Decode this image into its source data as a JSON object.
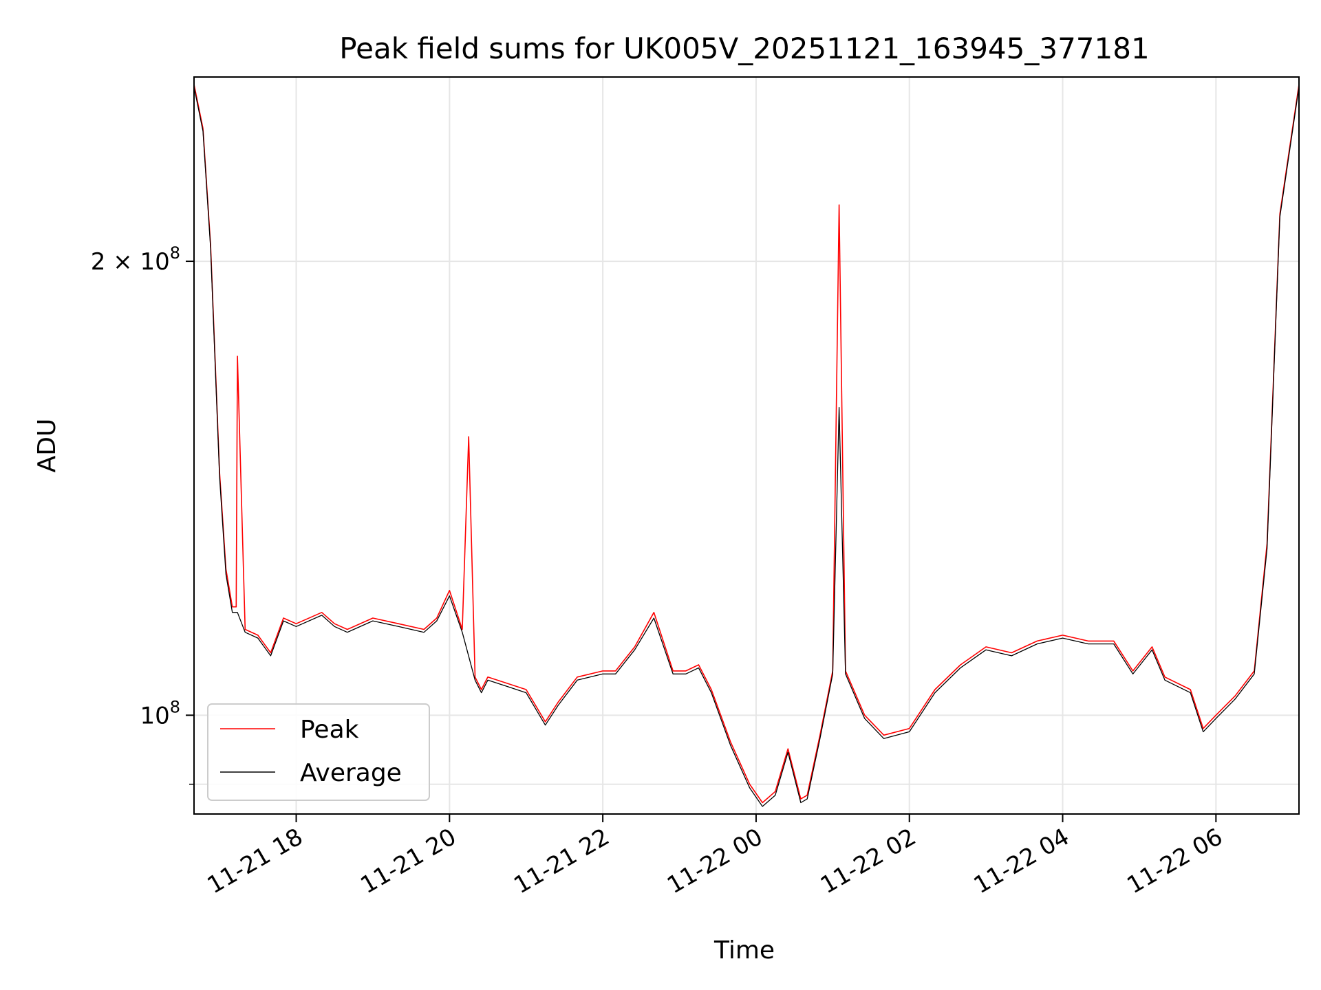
{
  "chart_data": {
    "type": "line",
    "title": "Peak field sums for UK005V_20251121_163945_377181",
    "xlabel": "Time",
    "ylabel": "ADU",
    "y_scale": "log",
    "grid": true,
    "legend_position": "lower-left",
    "xlim": [
      "2025-11-21 16:40",
      "2025-11-22 07:05"
    ],
    "ylim": [
      86000000,
      265000000
    ],
    "x_ticks": [
      {
        "value": "2025-11-21 18:00",
        "label": "11-21 18"
      },
      {
        "value": "2025-11-21 20:00",
        "label": "11-21 20"
      },
      {
        "value": "2025-11-21 22:00",
        "label": "11-21 22"
      },
      {
        "value": "2025-11-22 00:00",
        "label": "11-22 00"
      },
      {
        "value": "2025-11-22 02:00",
        "label": "11-22 02"
      },
      {
        "value": "2025-11-22 04:00",
        "label": "11-22 04"
      },
      {
        "value": "2025-11-22 06:00",
        "label": "11-22 06"
      }
    ],
    "y_ticks_major": [
      {
        "value": 100000000,
        "label": "10",
        "exp": "8"
      },
      {
        "value": 200000000,
        "label": "2 × 10",
        "exp": "8"
      }
    ],
    "y_ticks_minor": [
      90000000
    ],
    "series": [
      {
        "name": "Peak",
        "color": "#ff0000",
        "x": [
          "2025-11-21 16:40",
          "2025-11-21 16:47",
          "2025-11-21 16:53",
          "2025-11-21 17:00",
          "2025-11-21 17:05",
          "2025-11-21 17:10",
          "2025-11-21 17:13",
          "2025-11-21 17:14",
          "2025-11-21 17:20",
          "2025-11-21 17:30",
          "2025-11-21 17:40",
          "2025-11-21 17:50",
          "2025-11-21 18:00",
          "2025-11-21 18:20",
          "2025-11-21 18:30",
          "2025-11-21 18:40",
          "2025-11-21 19:00",
          "2025-11-21 19:20",
          "2025-11-21 19:40",
          "2025-11-21 19:50",
          "2025-11-21 20:00",
          "2025-11-21 20:10",
          "2025-11-21 20:15",
          "2025-11-21 20:20",
          "2025-11-21 20:25",
          "2025-11-21 20:30",
          "2025-11-21 20:45",
          "2025-11-21 21:00",
          "2025-11-21 21:15",
          "2025-11-21 21:25",
          "2025-11-21 21:40",
          "2025-11-21 22:00",
          "2025-11-21 22:10",
          "2025-11-21 22:25",
          "2025-11-21 22:40",
          "2025-11-21 22:55",
          "2025-11-21 23:05",
          "2025-11-21 23:15",
          "2025-11-21 23:25",
          "2025-11-21 23:40",
          "2025-11-21 23:55",
          "2025-11-22 00:05",
          "2025-11-22 00:15",
          "2025-11-22 00:25",
          "2025-11-22 00:35",
          "2025-11-22 00:40",
          "2025-11-22 00:50",
          "2025-11-22 01:00",
          "2025-11-22 01:05",
          "2025-11-22 01:10",
          "2025-11-22 01:25",
          "2025-11-22 01:40",
          "2025-11-22 02:00",
          "2025-11-22 02:20",
          "2025-11-22 02:40",
          "2025-11-22 03:00",
          "2025-11-22 03:20",
          "2025-11-22 03:40",
          "2025-11-22 04:00",
          "2025-11-22 04:20",
          "2025-11-22 04:40",
          "2025-11-22 04:55",
          "2025-11-22 05:10",
          "2025-11-22 05:20",
          "2025-11-22 05:40",
          "2025-11-22 05:50",
          "2025-11-22 06:00",
          "2025-11-22 06:15",
          "2025-11-22 06:30",
          "2025-11-22 06:40",
          "2025-11-22 06:50",
          "2025-11-22 07:05"
        ],
        "values": [
          262000000,
          245000000,
          205000000,
          145000000,
          125000000,
          118000000,
          118000000,
          173000000,
          114000000,
          113000000,
          110000000,
          116000000,
          115000000,
          117000000,
          115000000,
          114000000,
          116000000,
          115000000,
          114000000,
          116000000,
          121000000,
          114000000,
          153000000,
          106000000,
          104000000,
          106000000,
          105000000,
          104000000,
          99000000,
          102000000,
          106000000,
          107000000,
          107000000,
          111000000,
          117000000,
          107000000,
          107000000,
          108000000,
          104000000,
          96000000,
          90000000,
          87500000,
          89000000,
          95000000,
          88000000,
          88500000,
          97000000,
          107000000,
          218000000,
          107000000,
          100000000,
          97000000,
          98000000,
          104000000,
          108000000,
          111000000,
          110000000,
          112000000,
          113000000,
          112000000,
          112000000,
          107000000,
          111000000,
          106000000,
          104000000,
          98000000,
          100000000,
          103000000,
          107000000,
          130000000,
          215000000,
          262000000
        ]
      },
      {
        "name": "Average",
        "color": "#000000",
        "x": [
          "2025-11-21 16:40",
          "2025-11-21 16:47",
          "2025-11-21 16:53",
          "2025-11-21 17:00",
          "2025-11-21 17:05",
          "2025-11-21 17:10",
          "2025-11-21 17:14",
          "2025-11-21 17:20",
          "2025-11-21 17:30",
          "2025-11-21 17:40",
          "2025-11-21 17:50",
          "2025-11-21 18:00",
          "2025-11-21 18:20",
          "2025-11-21 18:30",
          "2025-11-21 18:40",
          "2025-11-21 19:00",
          "2025-11-21 19:20",
          "2025-11-21 19:40",
          "2025-11-21 19:50",
          "2025-11-21 20:00",
          "2025-11-21 20:10",
          "2025-11-21 20:20",
          "2025-11-21 20:25",
          "2025-11-21 20:30",
          "2025-11-21 20:45",
          "2025-11-21 21:00",
          "2025-11-21 21:15",
          "2025-11-21 21:25",
          "2025-11-21 21:40",
          "2025-11-21 22:00",
          "2025-11-21 22:10",
          "2025-11-21 22:25",
          "2025-11-21 22:40",
          "2025-11-21 22:55",
          "2025-11-21 23:05",
          "2025-11-21 23:15",
          "2025-11-21 23:25",
          "2025-11-21 23:40",
          "2025-11-21 23:55",
          "2025-11-22 00:05",
          "2025-11-22 00:15",
          "2025-11-22 00:25",
          "2025-11-22 00:35",
          "2025-11-22 00:40",
          "2025-11-22 00:50",
          "2025-11-22 01:00",
          "2025-11-22 01:05",
          "2025-11-22 01:10",
          "2025-11-22 01:25",
          "2025-11-22 01:40",
          "2025-11-22 02:00",
          "2025-11-22 02:20",
          "2025-11-22 02:40",
          "2025-11-22 03:00",
          "2025-11-22 03:20",
          "2025-11-22 03:40",
          "2025-11-22 04:00",
          "2025-11-22 04:20",
          "2025-11-22 04:40",
          "2025-11-22 04:55",
          "2025-11-22 05:10",
          "2025-11-22 05:20",
          "2025-11-22 05:40",
          "2025-11-22 05:50",
          "2025-11-22 06:00",
          "2025-11-22 06:15",
          "2025-11-22 06:30",
          "2025-11-22 06:40",
          "2025-11-22 06:50",
          "2025-11-22 07:05"
        ],
        "values": [
          261000000,
          244000000,
          204000000,
          144000000,
          124000000,
          117000000,
          117000000,
          113500000,
          112500000,
          109500000,
          115500000,
          114500000,
          116500000,
          114500000,
          113500000,
          115500000,
          114500000,
          113500000,
          115500000,
          120000000,
          113500000,
          105500000,
          103500000,
          105500000,
          104500000,
          103500000,
          98500000,
          101500000,
          105500000,
          106500000,
          106500000,
          110500000,
          116000000,
          106500000,
          106500000,
          107500000,
          103500000,
          95500000,
          89500000,
          87000000,
          88500000,
          94500000,
          87500000,
          88000000,
          96500000,
          106500000,
          160000000,
          106500000,
          99500000,
          96500000,
          97500000,
          103500000,
          107500000,
          110500000,
          109500000,
          111500000,
          112500000,
          111500000,
          111500000,
          106500000,
          110500000,
          105500000,
          103500000,
          97500000,
          99500000,
          102500000,
          106500000,
          129000000,
          214000000,
          261000000
        ]
      }
    ]
  }
}
